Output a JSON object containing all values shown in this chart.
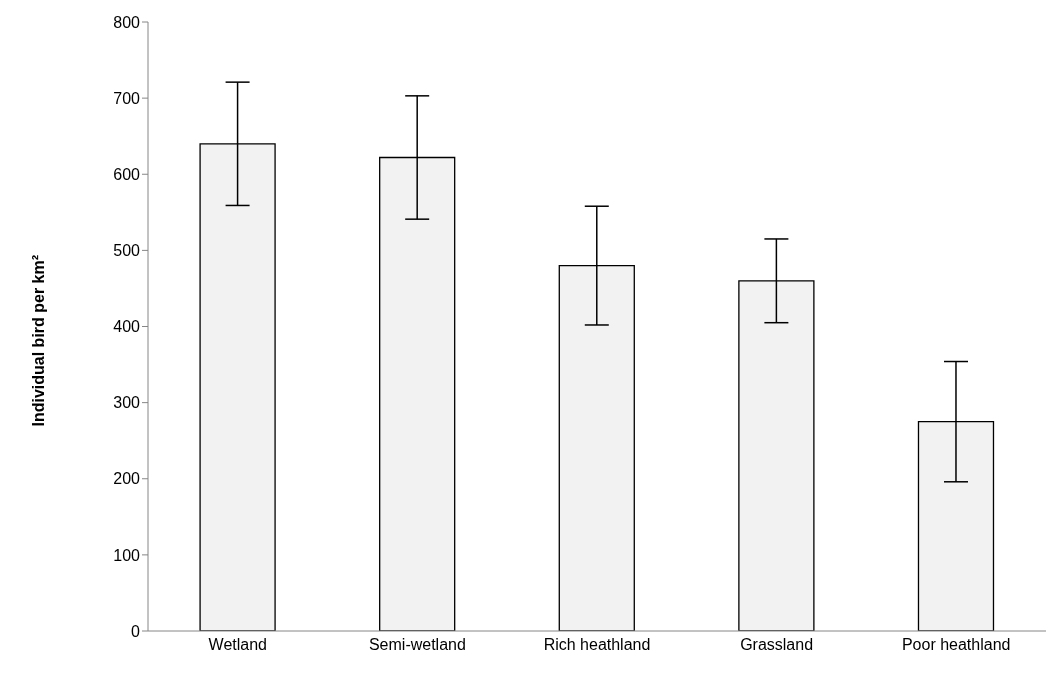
{
  "chart_data": {
    "type": "bar",
    "ylabel": "Individual bird per km²",
    "categories": [
      "Wetland",
      "Semi-wetland",
      "Rich heathland",
      "Grassland",
      "Poor heathland"
    ],
    "values": [
      640,
      622,
      480,
      460,
      275
    ],
    "errors": [
      81,
      81,
      78,
      55,
      79
    ],
    "color": "#f2f2f2",
    "ylim": [
      0,
      800
    ],
    "yticks": [
      0,
      100,
      200,
      300,
      400,
      500,
      600,
      700,
      800
    ],
    "grid": false
  }
}
